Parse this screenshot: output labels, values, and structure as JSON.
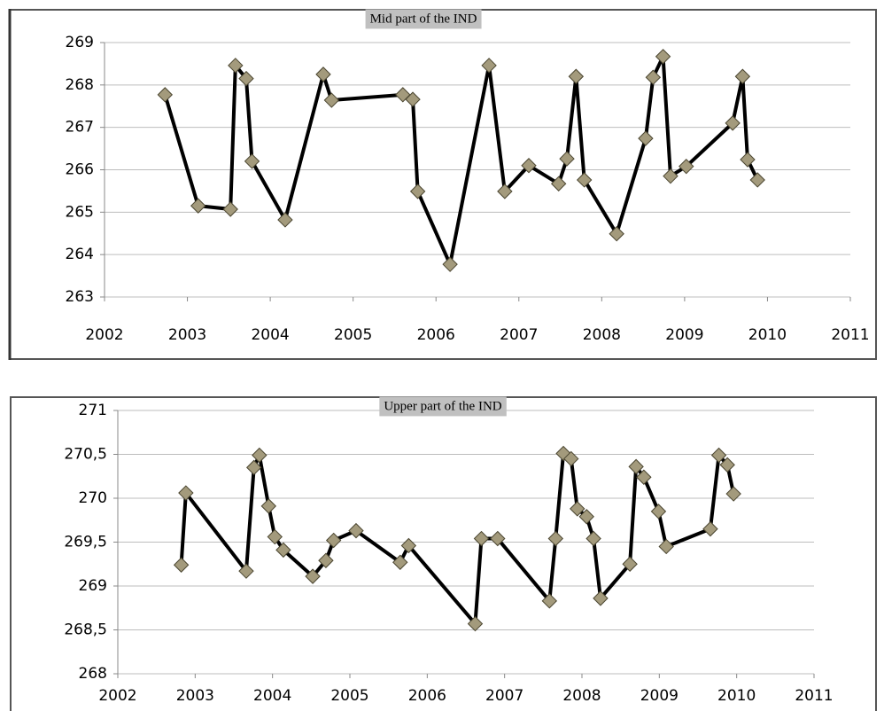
{
  "chart_data": [
    {
      "type": "line",
      "title": "Mid part of the IND",
      "color": "#000000",
      "marker_color": "#a39a7c",
      "grid": true,
      "xlim": [
        2002,
        2011
      ],
      "xticks": [
        2002,
        2003,
        2004,
        2005,
        2006,
        2007,
        2008,
        2009,
        2010,
        2011
      ],
      "ylim": [
        263,
        269
      ],
      "yticks": [
        263,
        264,
        265,
        266,
        267,
        268,
        269
      ],
      "x": [
        2002.73,
        2003.13,
        2003.52,
        2003.58,
        2003.71,
        2003.78,
        2004.18,
        2004.64,
        2004.74,
        2005.6,
        2005.72,
        2005.78,
        2006.17,
        2006.64,
        2006.83,
        2007.12,
        2007.48,
        2007.58,
        2007.69,
        2007.79,
        2008.18,
        2008.53,
        2008.62,
        2008.74,
        2008.83,
        2009.02,
        2009.58,
        2009.7,
        2009.76,
        2009.88
      ],
      "values": [
        267.77,
        265.15,
        265.07,
        268.46,
        268.15,
        266.2,
        264.82,
        268.25,
        267.64,
        267.77,
        267.66,
        265.49,
        263.77,
        268.46,
        265.49,
        266.1,
        265.67,
        266.26,
        268.2,
        265.76,
        264.49,
        266.74,
        268.18,
        268.67,
        265.85,
        266.08,
        267.1,
        268.2,
        266.24,
        265.76
      ]
    },
    {
      "type": "line",
      "title": "Upper part of the IND",
      "color": "#000000",
      "marker_color": "#a39a7c",
      "grid": true,
      "xlim": [
        2002,
        2011
      ],
      "xticks": [
        2002,
        2003,
        2004,
        2005,
        2006,
        2007,
        2008,
        2009,
        2010,
        2011
      ],
      "ylim": [
        268,
        271
      ],
      "yticks": [
        268,
        {
          "value": 268.5,
          "label": "268,5"
        },
        269,
        {
          "value": 269.5,
          "label": "269,5"
        },
        270,
        {
          "value": 270.5,
          "label": "270,5"
        },
        271
      ],
      "x": [
        2002.82,
        2002.88,
        2003.66,
        2003.76,
        2003.83,
        2003.95,
        2004.03,
        2004.14,
        2004.52,
        2004.69,
        2004.79,
        2005.08,
        2005.65,
        2005.76,
        2006.62,
        2006.7,
        2006.91,
        2007.58,
        2007.66,
        2007.76,
        2007.86,
        2007.94,
        2008.06,
        2008.15,
        2008.24,
        2008.62,
        2008.7,
        2008.8,
        2008.99,
        2009.09,
        2009.66,
        2009.77,
        2009.88,
        2009.96
      ],
      "values": [
        269.24,
        270.06,
        269.17,
        270.35,
        270.49,
        269.91,
        269.56,
        269.41,
        269.11,
        269.29,
        269.52,
        269.63,
        269.27,
        269.46,
        268.57,
        269.54,
        269.54,
        268.83,
        269.54,
        270.51,
        270.45,
        269.88,
        269.79,
        269.54,
        268.86,
        269.25,
        270.36,
        270.24,
        269.85,
        269.45,
        269.65,
        270.49,
        270.38,
        270.05
      ]
    }
  ]
}
